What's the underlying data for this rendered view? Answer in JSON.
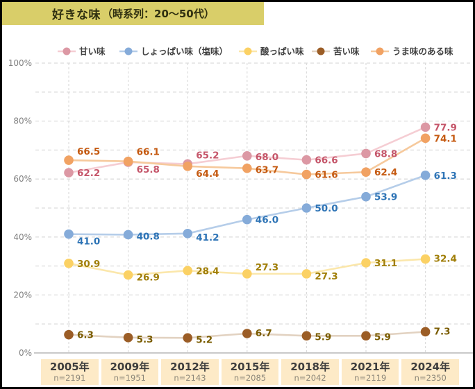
{
  "title": {
    "main": "好きな味",
    "sub": "（時系列：20〜50代）"
  },
  "y_axis": {
    "labels": [
      "100%",
      "80%",
      "60%",
      "40%",
      "20%",
      "0%"
    ]
  },
  "x_axis": {
    "columns": [
      {
        "year": "2005年",
        "n": "n=2191"
      },
      {
        "year": "2009年",
        "n": "n=1951"
      },
      {
        "year": "2012年",
        "n": "n=2143"
      },
      {
        "year": "2015年",
        "n": "n=2085"
      },
      {
        "year": "2018年",
        "n": "n=2042"
      },
      {
        "year": "2021年",
        "n": "n=2119"
      },
      {
        "year": "2024年",
        "n": "n=2350"
      }
    ]
  },
  "colors": {
    "title_band": "#d9ce69",
    "cell_background": "#fdeac7",
    "grid_line": "#dcdcdc",
    "axis_line": "#c9c9c9",
    "axis_label": "#7f7f7f",
    "legend_text": "#404040",
    "border": "#000000"
  },
  "chart_data": {
    "type": "line",
    "title": "好きな味（時系列：20〜50代）",
    "categories": [
      "2005年",
      "2009年",
      "2012年",
      "2015年",
      "2018年",
      "2021年",
      "2024年"
    ],
    "sample_sizes": [
      2191,
      1951,
      2143,
      2085,
      2042,
      2119,
      2350
    ],
    "xlabel": "",
    "ylabel": "%",
    "ylim": [
      0,
      100
    ],
    "grid": "dashed horizontal every 10%, dashed vertical per category",
    "legend_position": "top",
    "series": [
      {
        "name": "甘い味",
        "values": [
          62.2,
          65.8,
          65.2,
          68.0,
          66.6,
          68.8,
          77.9
        ],
        "line_color": "#f5cdd3",
        "marker_color": "#dc98a4",
        "label_color": "#c5566a",
        "label_dy": [
          5,
          15,
          -8,
          6,
          5,
          5,
          5
        ]
      },
      {
        "name": "しょっぱい味（塩味）",
        "values": [
          41.0,
          40.8,
          41.2,
          46.0,
          50.0,
          53.9,
          61.3
        ],
        "line_color": "#b5cde9",
        "marker_color": "#85abd9",
        "label_color": "#2e74b6",
        "label_dy": [
          15,
          7,
          10,
          5,
          5,
          5,
          5
        ]
      },
      {
        "name": "酸っぱい味",
        "values": [
          30.9,
          26.9,
          28.4,
          27.3,
          27.3,
          31.1,
          32.4
        ],
        "line_color": "#fbe7ab",
        "marker_color": "#fbd164",
        "label_color": "#a07e08",
        "label_dy": [
          5,
          8,
          5,
          -5,
          8,
          5,
          4
        ]
      },
      {
        "name": "苦い味",
        "values": [
          6.3,
          5.3,
          5.2,
          6.7,
          5.9,
          5.9,
          7.3
        ],
        "line_color": "#e2d2c1",
        "marker_color": "#9b5d26",
        "label_color": "#7a5c00",
        "label_dy": [
          5,
          7,
          7,
          4,
          6,
          6,
          4
        ]
      },
      {
        "name": "うま味のある味",
        "values": [
          66.5,
          66.1,
          64.4,
          63.7,
          61.6,
          62.4,
          74.1
        ],
        "line_color": "#f6c99c",
        "marker_color": "#f1a263",
        "label_color": "#c55a11",
        "label_dy": [
          -8,
          -9,
          15,
          7,
          5,
          5,
          5
        ]
      }
    ]
  }
}
